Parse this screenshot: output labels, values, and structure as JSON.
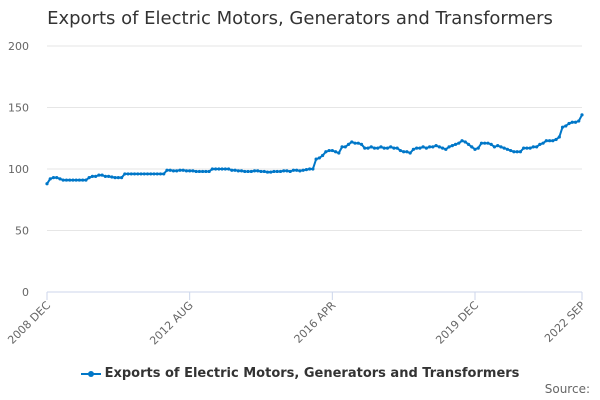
{
  "chart_data": {
    "type": "line",
    "title": "Exports of Electric Motors, Generators and Transformers",
    "x_start": "2008 DEC",
    "x_end": "2022 SEP",
    "x_frequency": "monthly",
    "x_tick_labels": [
      "2008 DEC",
      "2012 AUG",
      "2016 APR",
      "2019 DEC",
      "2022 SEP"
    ],
    "y_ticks": [
      0,
      50,
      100,
      150,
      200
    ],
    "ylim": [
      0,
      200
    ],
    "grid": "horizontal",
    "legend_position": "bottom",
    "color": "#0077c8",
    "series": [
      {
        "name": "Exports of Electric Motors, Generators and Transformers",
        "values": [
          88,
          92,
          93,
          93,
          92,
          91,
          91,
          91,
          91,
          91,
          91,
          91,
          91,
          93,
          94,
          94,
          95,
          95,
          94,
          94,
          93.5,
          93,
          93,
          93,
          96,
          96,
          96,
          96,
          96,
          96,
          96,
          96,
          96,
          96,
          96,
          96,
          96,
          99,
          99,
          98.5,
          98.5,
          99,
          99,
          98.5,
          98.5,
          98.5,
          98,
          98,
          98,
          98,
          98,
          100,
          100,
          100,
          100,
          100,
          100,
          99,
          99,
          98.5,
          98.5,
          98,
          98,
          98,
          98.5,
          98.5,
          98,
          98,
          97.5,
          97.5,
          98,
          98,
          98,
          98.5,
          98.5,
          98,
          99,
          99,
          98.5,
          99,
          99.5,
          100,
          100,
          108,
          109,
          111,
          114,
          115,
          115,
          114,
          113,
          118,
          118,
          120,
          122,
          121,
          121,
          120,
          117,
          117,
          118,
          117,
          117,
          118,
          117,
          117,
          118,
          117,
          117,
          115,
          114,
          114,
          113,
          116,
          117,
          117,
          118,
          117,
          118,
          118,
          119,
          118,
          117,
          116,
          118,
          119,
          120,
          121,
          123,
          122,
          120,
          118,
          116,
          117,
          121,
          121,
          121,
          120,
          118,
          119,
          118,
          117,
          116,
          115,
          114,
          114,
          114,
          117,
          117,
          117,
          118,
          118,
          120,
          121,
          123,
          123,
          123,
          124,
          126,
          134,
          135,
          137,
          138,
          138,
          139,
          144
        ]
      }
    ]
  },
  "source_label": "Source:"
}
